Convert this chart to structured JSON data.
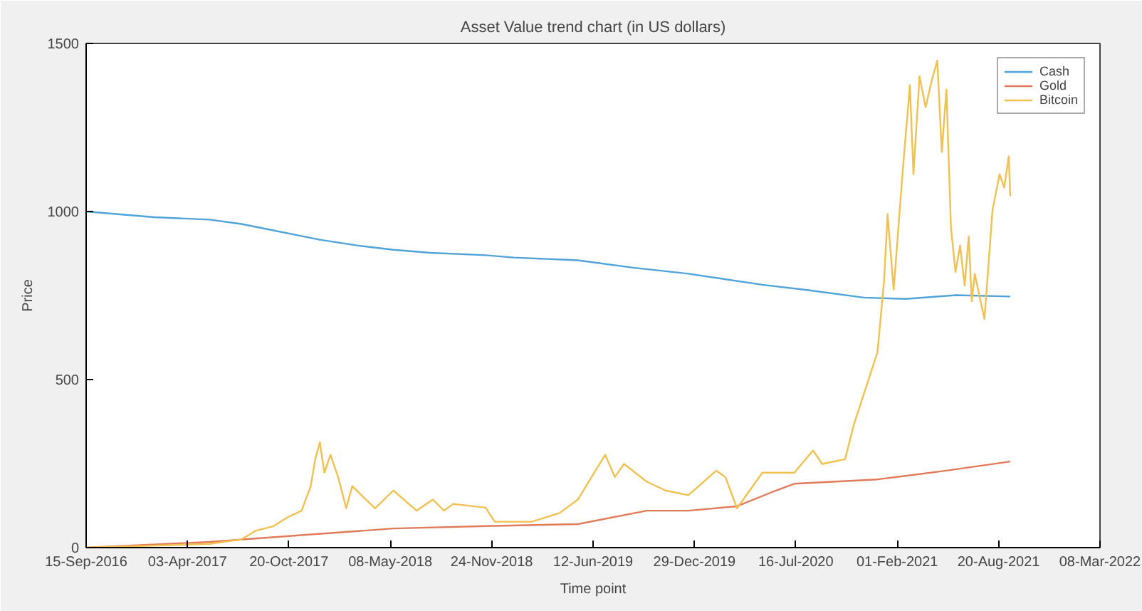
{
  "chart_data": {
    "type": "line",
    "title": "Asset Value trend chart (in US dollars)",
    "xlabel": "Time point",
    "ylabel": "Price",
    "xlim": [
      "2016-09-15",
      "2022-03-08"
    ],
    "xticks": [
      {
        "value": "2016-09-15",
        "label": "15-Sep-2016"
      },
      {
        "value": "2017-04-03",
        "label": "03-Apr-2017"
      },
      {
        "value": "2017-10-20",
        "label": "20-Oct-2017"
      },
      {
        "value": "2018-05-08",
        "label": "08-May-2018"
      },
      {
        "value": "2018-11-24",
        "label": "24-Nov-2018"
      },
      {
        "value": "2019-06-12",
        "label": "12-Jun-2019"
      },
      {
        "value": "2019-12-29",
        "label": "29-Dec-2019"
      },
      {
        "value": "2020-07-16",
        "label": "16-Jul-2020"
      },
      {
        "value": "2021-02-01",
        "label": "01-Feb-2021"
      },
      {
        "value": "2021-08-20",
        "label": "20-Aug-2021"
      },
      {
        "value": "2022-03-08",
        "label": "08-Mar-2022"
      }
    ],
    "ylim": [
      0,
      1500
    ],
    "yticks": [
      0,
      500,
      1000,
      1500
    ],
    "grid": false,
    "legend": "top right",
    "series": [
      {
        "name": "Cash",
        "color": "#4fa3d8",
        "x": [
          "2016-09-15",
          "2017-01-27",
          "2017-05-16",
          "2017-07-18",
          "2017-12-20",
          "2018-03-03",
          "2018-05-14",
          "2018-07-26",
          "2018-11-12",
          "2019-01-06",
          "2019-05-13",
          "2019-08-30",
          "2019-12-17",
          "2020-05-11",
          "2020-08-10",
          "2020-11-27",
          "2021-02-17",
          "2021-05-28",
          "2021-09-12"
        ],
        "values": [
          1000,
          983,
          976,
          963,
          916,
          899,
          886,
          877,
          870,
          863,
          855,
          833,
          815,
          782,
          766,
          744,
          740,
          751,
          747
        ]
      },
      {
        "name": "Gold",
        "color": "#e07b5a",
        "x": [
          "2016-09-15",
          "2017-05-16",
          "2017-11-13",
          "2018-05-14",
          "2018-11-12",
          "2019-05-13",
          "2019-09-26",
          "2019-12-17",
          "2020-03-22",
          "2020-06-07",
          "2020-07-13",
          "2020-12-24",
          "2021-05-09",
          "2021-09-12"
        ],
        "values": [
          0,
          17,
          37,
          57,
          64,
          70,
          110,
          110,
          123,
          170,
          190,
          203,
          229,
          256
        ]
      },
      {
        "name": "Bitcoin",
        "color": "#f0c050",
        "x": [
          "2016-09-15",
          "2017-05-16",
          "2017-07-18",
          "2017-08-15",
          "2017-09-20",
          "2017-10-17",
          "2017-11-14",
          "2017-12-02",
          "2017-12-11",
          "2017-12-20",
          "2017-12-29",
          "2018-01-10",
          "2018-01-25",
          "2018-02-10",
          "2018-02-22",
          "2018-03-12",
          "2018-04-08",
          "2018-05-14",
          "2018-06-29",
          "2018-07-31",
          "2018-08-22",
          "2018-09-09",
          "2018-11-12",
          "2018-11-30",
          "2018-12-28",
          "2019-02-11",
          "2019-04-07",
          "2019-05-13",
          "2019-06-09",
          "2019-07-06",
          "2019-07-25",
          "2019-08-12",
          "2019-09-26",
          "2019-11-02",
          "2019-12-17",
          "2020-02-10",
          "2020-02-28",
          "2020-03-22",
          "2020-05-11",
          "2020-07-13",
          "2020-08-19",
          "2020-09-06",
          "2020-10-21",
          "2020-11-08",
          "2020-12-01",
          "2020-12-24",
          "2021-01-06",
          "2021-01-13",
          "2021-01-25",
          "2021-02-12",
          "2021-02-26",
          "2021-03-05",
          "2021-03-17",
          "2021-03-29",
          "2021-04-10",
          "2021-04-21",
          "2021-04-30",
          "2021-05-09",
          "2021-05-18",
          "2021-05-27",
          "2021-06-05",
          "2021-06-14",
          "2021-06-22",
          "2021-06-28",
          "2021-07-04",
          "2021-07-23",
          "2021-07-30",
          "2021-08-08",
          "2021-08-22",
          "2021-08-31",
          "2021-09-09",
          "2021-09-12"
        ],
        "values": [
          0,
          11,
          24,
          50,
          64,
          90,
          110,
          183,
          263,
          313,
          223,
          276,
          210,
          117,
          183,
          156,
          117,
          170,
          110,
          143,
          110,
          130,
          119,
          77,
          77,
          77,
          103,
          143,
          210,
          276,
          210,
          249,
          196,
          170,
          156,
          229,
          210,
          117,
          223,
          223,
          289,
          249,
          263,
          369,
          475,
          581,
          793,
          992,
          767,
          1124,
          1376,
          1111,
          1402,
          1310,
          1389,
          1449,
          1177,
          1363,
          952,
          820,
          899,
          780,
          926,
          733,
          814,
          680,
          820,
          1005,
          1111,
          1071,
          1164,
          1045
        ]
      }
    ]
  }
}
